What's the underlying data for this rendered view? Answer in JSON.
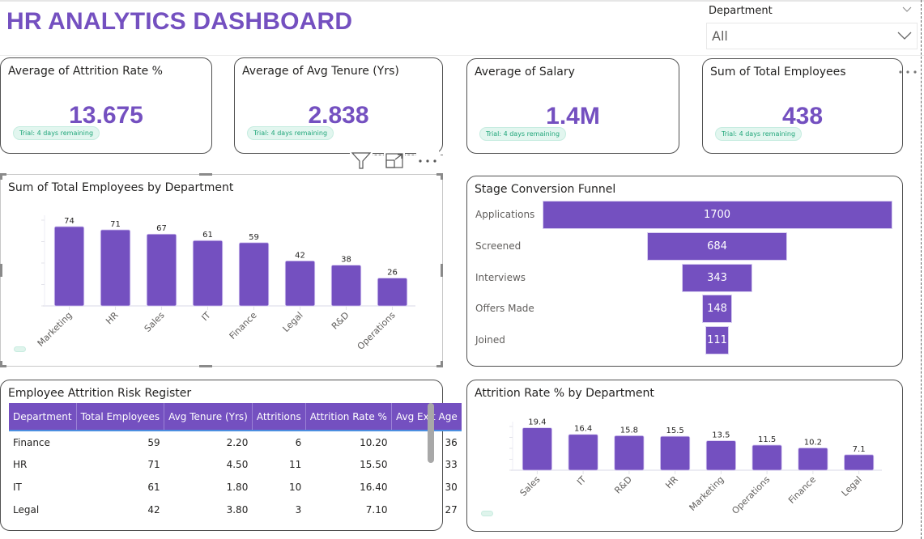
{
  "header": {
    "title": "HR ANALYTICS DASHBOARD"
  },
  "slicer": {
    "label": "Department",
    "selected": "All"
  },
  "kpis": [
    {
      "title": "Average of Attrition Rate %",
      "value": "13.675",
      "badge": "Trial: 4 days remaining"
    },
    {
      "title": "Average of Avg Tenure (Yrs)",
      "value": "2.838",
      "badge": "Trial: 4 days remaining"
    },
    {
      "title": "Average of Salary",
      "value": "1.4M",
      "badge": "Trial: 4 days remaining"
    },
    {
      "title": "Sum of Total Employees",
      "value": "438",
      "badge": "Trial: 4 days remaining"
    }
  ],
  "colors": {
    "accent": "#7450C0",
    "trial_text": "#21a67a",
    "trial_bg": "#e2f6ef"
  },
  "funnel": {
    "title": "Stage Conversion Funnel",
    "stages": [
      {
        "label": "Applications",
        "value": 1700
      },
      {
        "label": "Screened",
        "value": 684
      },
      {
        "label": "Interviews",
        "value": 343
      },
      {
        "label": "Offers Made",
        "value": 148
      },
      {
        "label": "Joined",
        "value": 111
      }
    ]
  },
  "table": {
    "title": "Employee Attrition Risk Register",
    "columns": [
      "Department",
      "Total Employees",
      "Avg Tenure (Yrs)",
      "Attritions",
      "Attrition Rate %",
      "Avg Exit Age"
    ],
    "rows": [
      [
        "Finance",
        "59",
        "2.20",
        "6",
        "10.20",
        "36"
      ],
      [
        "HR",
        "71",
        "4.50",
        "11",
        "15.50",
        "33"
      ],
      [
        "IT",
        "61",
        "1.80",
        "10",
        "16.40",
        "30"
      ],
      [
        "Legal",
        "42",
        "3.80",
        "3",
        "7.10",
        "27"
      ]
    ]
  },
  "chart_data": [
    {
      "type": "bar",
      "title": "Sum of Total Employees by Department",
      "categories": [
        "Marketing",
        "HR",
        "Sales",
        "IT",
        "Finance",
        "Legal",
        "R&D",
        "Operations"
      ],
      "values": [
        74,
        71,
        67,
        61,
        59,
        42,
        38,
        26
      ],
      "xlabel": "",
      "ylabel": "",
      "ylim": [
        0,
        80
      ],
      "data_labels": true,
      "grid": false
    },
    {
      "type": "bar",
      "title": "Attrition Rate % by Department",
      "categories": [
        "Sales",
        "IT",
        "R&D",
        "HR",
        "Marketing",
        "Operations",
        "Finance",
        "Legal"
      ],
      "values": [
        19.4,
        16.4,
        15.8,
        15.5,
        13.5,
        11.5,
        10.2,
        7.1
      ],
      "xlabel": "",
      "ylabel": "",
      "ylim": [
        0,
        20
      ],
      "data_labels": true,
      "grid": false
    }
  ]
}
